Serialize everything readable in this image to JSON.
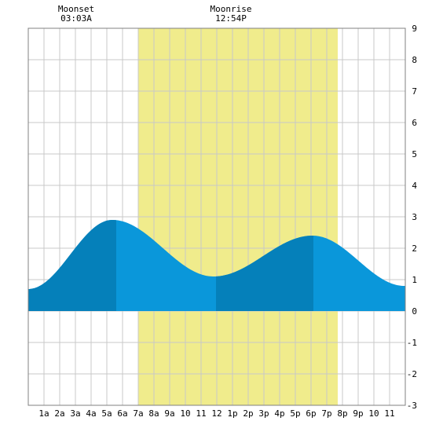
{
  "chart_data": {
    "type": "area",
    "title": "",
    "xlabel": "",
    "ylabel": "",
    "xlim": [
      0,
      24
    ],
    "ylim": [
      -3,
      9
    ],
    "grid": true,
    "x_tick_labels": [
      "1a",
      "2a",
      "3a",
      "4a",
      "5a",
      "6a",
      "7a",
      "8a",
      "9a",
      "10",
      "11",
      "12",
      "1p",
      "2p",
      "3p",
      "4p",
      "5p",
      "6p",
      "7p",
      "8p",
      "9p",
      "10",
      "11"
    ],
    "y_tick_labels": [
      "-3",
      "-2",
      "-1",
      "0",
      "1",
      "2",
      "3",
      "4",
      "5",
      "6",
      "7",
      "8",
      "9"
    ],
    "daylight": {
      "start_hour": 7.0,
      "end_hour": 19.7,
      "color": "#f0ec8c"
    },
    "tide_extremes": [
      {
        "hour": 0.0,
        "height": 0.7
      },
      {
        "hour": 5.35,
        "height": 2.9
      },
      {
        "hour": 11.8,
        "height": 1.1
      },
      {
        "hour": 18.1,
        "height": 2.4
      },
      {
        "hour": 23.95,
        "height": 0.8
      }
    ],
    "dark_segments": [
      [
        0,
        5.6
      ],
      [
        11.95,
        18.15
      ]
    ],
    "colors": {
      "fill_light": "#0a97da",
      "fill_dark": "#0580ba",
      "grid": "#c8c8c8",
      "frame": "#808080"
    }
  },
  "moonset": {
    "label": "Moonset",
    "time": "03:03A",
    "hour": 3.05
  },
  "moonrise": {
    "label": "Moonrise",
    "time": "12:54P",
    "hour": 12.9
  }
}
